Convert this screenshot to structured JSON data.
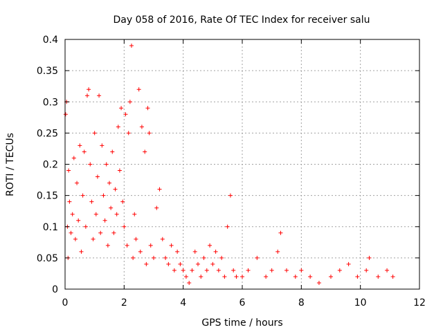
{
  "chart_data": {
    "type": "scatter",
    "title": "Day 058 of 2016, Rate Of TEC Index for receiver salu",
    "xlabel": "GPS time / hours",
    "ylabel": "ROTI / TECUs",
    "xlim": [
      0,
      12
    ],
    "ylim": [
      0,
      0.4
    ],
    "grid": true,
    "marker": "+",
    "series_color": "#ff0000",
    "x_ticks": [
      0,
      2,
      4,
      6,
      8,
      10,
      12
    ],
    "x_tick_labels": [
      "0",
      "2",
      "4",
      "6",
      "8",
      "10",
      "12"
    ],
    "y_ticks": [
      0,
      0.05,
      0.1,
      0.15,
      0.2,
      0.25,
      0.3,
      0.35,
      0.4
    ],
    "y_tick_labels": [
      "0",
      "0.05",
      "0.1",
      "0.15",
      "0.2",
      "0.25",
      "0.3",
      "0.35",
      "0.4"
    ],
    "series": [
      {
        "name": "ROTI",
        "x_range": [
          0,
          11.1
        ],
        "description": "Dense red '+' markers; high scatter (0.03–0.32, peaks near 0.39 at ~2.3h) from 0 to ~3h, decaying to ~0.01–0.06 after 4h with isolated spikes near 5.6h (~0.15), 7.3h (~0.09) and 10.3h (~0.05)",
        "points": [
          [
            0.02,
            0.28
          ],
          [
            0.05,
            0.3
          ],
          [
            0.08,
            0.1
          ],
          [
            0.1,
            0.05
          ],
          [
            0.12,
            0.19
          ],
          [
            0.15,
            0.14
          ],
          [
            0.2,
            0.09
          ],
          [
            0.25,
            0.12
          ],
          [
            0.3,
            0.21
          ],
          [
            0.35,
            0.08
          ],
          [
            0.4,
            0.17
          ],
          [
            0.45,
            0.11
          ],
          [
            0.5,
            0.23
          ],
          [
            0.55,
            0.06
          ],
          [
            0.6,
            0.15
          ],
          [
            0.65,
            0.22
          ],
          [
            0.7,
            0.1
          ],
          [
            0.75,
            0.31
          ],
          [
            0.8,
            0.32
          ],
          [
            0.85,
            0.2
          ],
          [
            0.9,
            0.14
          ],
          [
            0.95,
            0.08
          ],
          [
            1.0,
            0.25
          ],
          [
            1.05,
            0.12
          ],
          [
            1.1,
            0.18
          ],
          [
            1.15,
            0.31
          ],
          [
            1.2,
            0.09
          ],
          [
            1.25,
            0.23
          ],
          [
            1.3,
            0.15
          ],
          [
            1.35,
            0.11
          ],
          [
            1.4,
            0.2
          ],
          [
            1.45,
            0.07
          ],
          [
            1.5,
            0.17
          ],
          [
            1.55,
            0.13
          ],
          [
            1.6,
            0.22
          ],
          [
            1.65,
            0.09
          ],
          [
            1.7,
            0.16
          ],
          [
            1.75,
            0.12
          ],
          [
            1.8,
            0.26
          ],
          [
            1.85,
            0.19
          ],
          [
            1.9,
            0.29
          ],
          [
            1.95,
            0.14
          ],
          [
            2.0,
            0.1
          ],
          [
            2.05,
            0.28
          ],
          [
            2.1,
            0.07
          ],
          [
            2.15,
            0.25
          ],
          [
            2.2,
            0.3
          ],
          [
            2.25,
            0.39
          ],
          [
            2.3,
            0.05
          ],
          [
            2.35,
            0.12
          ],
          [
            2.4,
            0.08
          ],
          [
            2.5,
            0.32
          ],
          [
            2.55,
            0.06
          ],
          [
            2.6,
            0.26
          ],
          [
            2.7,
            0.22
          ],
          [
            2.75,
            0.04
          ],
          [
            2.8,
            0.29
          ],
          [
            2.85,
            0.25
          ],
          [
            2.9,
            0.07
          ],
          [
            3.0,
            0.05
          ],
          [
            3.1,
            0.13
          ],
          [
            3.2,
            0.16
          ],
          [
            3.3,
            0.08
          ],
          [
            3.4,
            0.05
          ],
          [
            3.5,
            0.04
          ],
          [
            3.6,
            0.07
          ],
          [
            3.7,
            0.03
          ],
          [
            3.8,
            0.06
          ],
          [
            3.9,
            0.04
          ],
          [
            4.0,
            0.03
          ],
          [
            4.1,
            0.02
          ],
          [
            4.2,
            0.01
          ],
          [
            4.3,
            0.03
          ],
          [
            4.4,
            0.06
          ],
          [
            4.5,
            0.04
          ],
          [
            4.6,
            0.02
          ],
          [
            4.7,
            0.05
          ],
          [
            4.8,
            0.03
          ],
          [
            4.9,
            0.07
          ],
          [
            5.0,
            0.04
          ],
          [
            5.1,
            0.06
          ],
          [
            5.2,
            0.03
          ],
          [
            5.3,
            0.05
          ],
          [
            5.4,
            0.02
          ],
          [
            5.5,
            0.1
          ],
          [
            5.6,
            0.15
          ],
          [
            5.7,
            0.03
          ],
          [
            5.8,
            0.02
          ],
          [
            6.0,
            0.02
          ],
          [
            6.2,
            0.03
          ],
          [
            6.5,
            0.05
          ],
          [
            6.8,
            0.02
          ],
          [
            7.0,
            0.03
          ],
          [
            7.2,
            0.06
          ],
          [
            7.3,
            0.09
          ],
          [
            7.5,
            0.03
          ],
          [
            7.8,
            0.02
          ],
          [
            8.0,
            0.03
          ],
          [
            8.3,
            0.02
          ],
          [
            8.6,
            0.01
          ],
          [
            9.0,
            0.02
          ],
          [
            9.3,
            0.03
          ],
          [
            9.6,
            0.04
          ],
          [
            9.9,
            0.02
          ],
          [
            10.2,
            0.03
          ],
          [
            10.3,
            0.05
          ],
          [
            10.6,
            0.02
          ],
          [
            10.9,
            0.03
          ],
          [
            11.1,
            0.02
          ]
        ]
      }
    ]
  }
}
